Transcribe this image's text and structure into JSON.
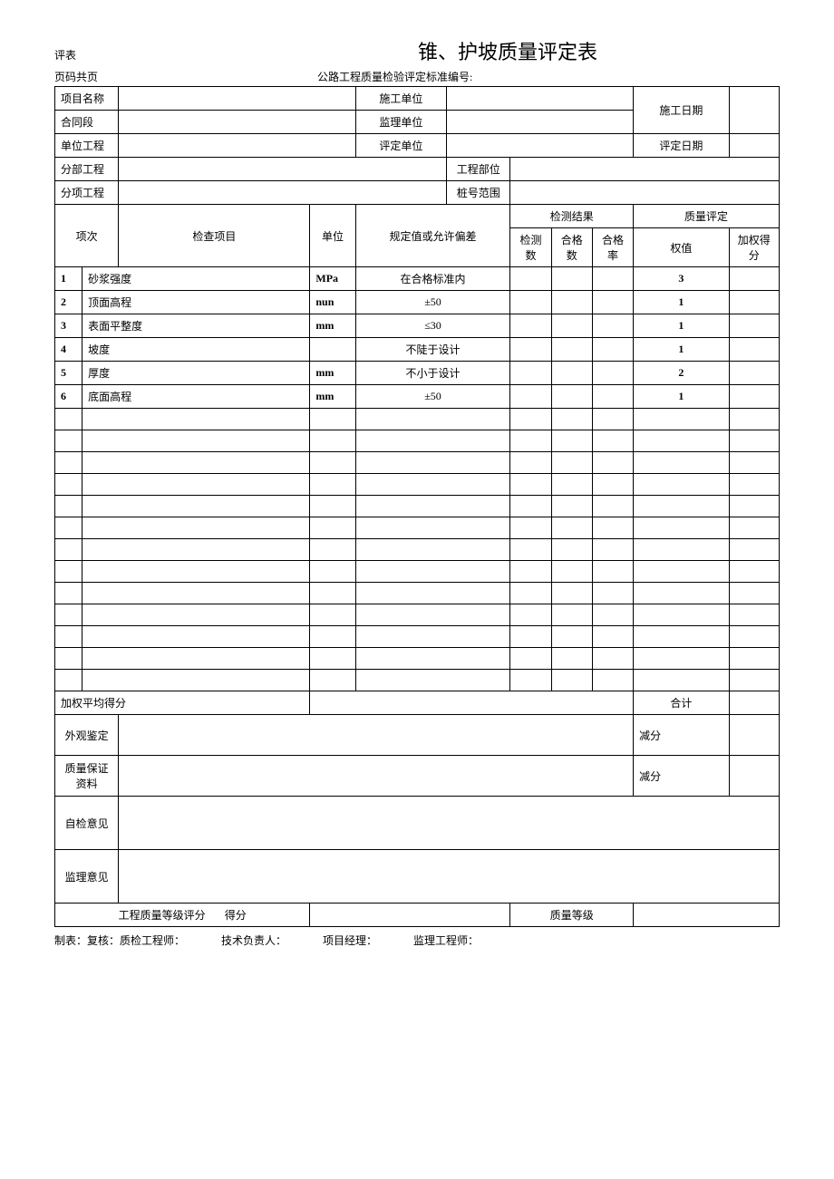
{
  "header": {
    "small_top": "评表",
    "title": "锥、护坡质量评定表",
    "page_label": "页码共页",
    "standard_label": "公路工程质量检验评定标准编号:"
  },
  "info": {
    "project_name_label": "项目名称",
    "construction_unit_label": "施工单位",
    "construction_date_label": "施工日期",
    "contract_label": "合同段",
    "supervision_unit_label": "监理单位",
    "unit_project_label": "单位工程",
    "eval_unit_label": "评定单位",
    "eval_date_label": "评定日期",
    "section_project_label": "分部工程",
    "project_part_label": "工程部位",
    "item_project_label": "分项工程",
    "pile_range_label": "桩号范围"
  },
  "table_header": {
    "item_no": "项次",
    "check_item": "检查项目",
    "unit": "单位",
    "spec": "规定值或允许偏差",
    "test_result": "检测结果",
    "test_count": "检测数",
    "pass_count": "合格数",
    "pass_rate": "合格率",
    "quality_eval": "质量评定",
    "weight": "权值",
    "weighted_score": "加权得分"
  },
  "rows": [
    {
      "no": "1",
      "item": "砂浆强度",
      "unit": "MPa",
      "spec": "在合格标准内",
      "weight": "3"
    },
    {
      "no": "2",
      "item": "顶面高程",
      "unit": "nun",
      "spec": "±50",
      "weight": "1"
    },
    {
      "no": "3",
      "item": "表面平整度",
      "unit": "mm",
      "spec": "≤30",
      "weight": "1"
    },
    {
      "no": "4",
      "item": "坡度",
      "unit": "",
      "spec": "不陡于设计",
      "weight": "1"
    },
    {
      "no": "5",
      "item": "厚度",
      "unit": "mm",
      "spec": "不小于设计",
      "weight": "2"
    },
    {
      "no": "6",
      "item": "底面高程",
      "unit": "mm",
      "spec": "±50",
      "weight": "1"
    }
  ],
  "summary": {
    "weighted_avg_label": "加权平均得分",
    "total_label": "合计",
    "appearance_label": "外观鉴定",
    "deduct_label": "减分",
    "qa_doc_label": "质量保证资料",
    "self_check_label": "自检意见",
    "supervision_label": "监理意见",
    "grade_eval_label": "工程质量等级评分",
    "score_label": "得分",
    "quality_grade_label": "质量等级"
  },
  "footer": {
    "maker": "制表：复核：质检工程师：",
    "tech": "技术负责人：",
    "pm": "项目经理：",
    "supervisor": "监理工程师："
  },
  "layout": {
    "empty_rows": 13
  }
}
